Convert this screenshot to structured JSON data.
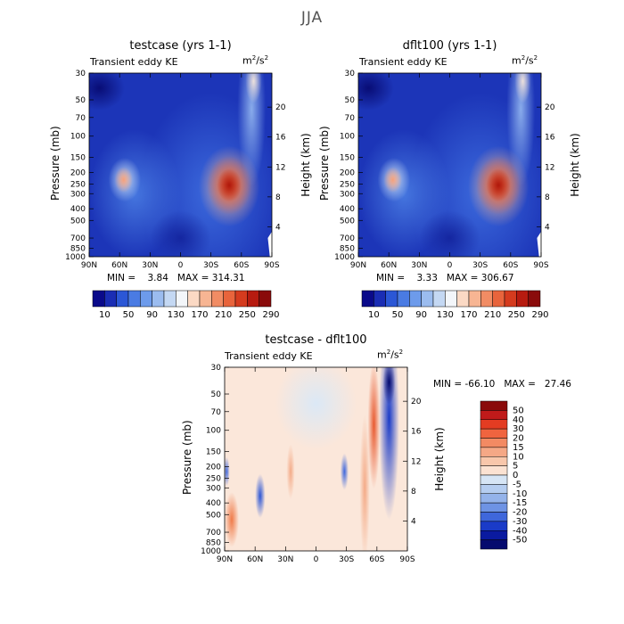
{
  "figure": {
    "title": "JJA"
  },
  "panels": [
    {
      "id": "testcase",
      "title": "testcase (yrs 1-1)",
      "left_label": "Transient eddy KE",
      "right_label": "m²/s²",
      "stats": "MIN =    3.84   MAX = 314.31"
    },
    {
      "id": "dflt100",
      "title": "dflt100 (yrs 1-1)",
      "left_label": "Transient eddy KE",
      "right_label": "m²/s²",
      "stats": "MIN =    3.33   MAX = 306.67"
    },
    {
      "id": "diff",
      "title": "testcase - dflt100",
      "left_label": "Transient eddy KE",
      "right_label": "m²/s²",
      "stats": "MIN = -66.10   MAX =   27.46"
    }
  ],
  "axes": {
    "ylabel": "Pressure (mb)",
    "y2label": "Height (km)",
    "xticks": [
      "90N",
      "60N",
      "30N",
      "0",
      "30S",
      "60S",
      "90S"
    ],
    "yticks": [
      "30",
      "50",
      "70",
      "100",
      "150",
      "200",
      "250",
      "300",
      "400",
      "500",
      "700",
      "850",
      "1000"
    ],
    "y2ticks": [
      "20",
      "16",
      "12",
      "8",
      "4"
    ]
  },
  "colorbars": {
    "abs_labels": [
      "10",
      "50",
      "90",
      "130",
      "170",
      "210",
      "250",
      "290"
    ],
    "abs_colors": [
      "#0a0a8a",
      "#1a2db4",
      "#2b57d6",
      "#4a7be3",
      "#6d9beb",
      "#9bbcef",
      "#c4d8f3",
      "#f3f6fa",
      "#fbd9c4",
      "#f7b593",
      "#f18c64",
      "#e8643c",
      "#d53b1e",
      "#b71b10",
      "#8a0b0b"
    ],
    "diff_labels": [
      "50",
      "40",
      "30",
      "20",
      "15",
      "10",
      "5",
      "0",
      "-5",
      "-10",
      "-15",
      "-20",
      "-30",
      "-40",
      "-50"
    ],
    "diff_colors": [
      "#8a0a0a",
      "#c01a1a",
      "#e33c22",
      "#f0643f",
      "#f38a63",
      "#f5a886",
      "#f8c7ab",
      "#fbe2d2",
      "#d6e5f5",
      "#b5cdf0",
      "#94b3ea",
      "#6e93e4",
      "#3f67db",
      "#1a3bc8",
      "#0a1aa0",
      "#050a6e"
    ]
  },
  "chart_data": [
    {
      "type": "heatmap",
      "title": "testcase (yrs 1-1)",
      "variable": "Transient eddy KE",
      "units": "m²/s²",
      "xlabel": "",
      "ylabel": "Pressure (mb)",
      "y2label": "Height (km)",
      "x_ticks": [
        "90N",
        "60N",
        "30N",
        "0",
        "30S",
        "60S",
        "90S"
      ],
      "y_ticks": [
        30,
        50,
        70,
        100,
        150,
        200,
        250,
        300,
        400,
        500,
        700,
        850,
        1000
      ],
      "y2_ticks": [
        20,
        16,
        12,
        8,
        4
      ],
      "y_scale": "log",
      "contour_levels": [
        10,
        50,
        90,
        130,
        170,
        210,
        250,
        290
      ],
      "min": 3.84,
      "max": 314.31,
      "features": [
        {
          "lat": -50,
          "pressure": 250,
          "value": 300
        },
        {
          "lat": 55,
          "pressure": 250,
          "value": 170
        },
        {
          "lat": -75,
          "pressure": 40,
          "value": 150
        }
      ]
    },
    {
      "type": "heatmap",
      "title": "dflt100 (yrs 1-1)",
      "variable": "Transient eddy KE",
      "units": "m²/s²",
      "xlabel": "",
      "ylabel": "Pressure (mb)",
      "y2label": "Height (km)",
      "x_ticks": [
        "90N",
        "60N",
        "30N",
        "0",
        "30S",
        "60S",
        "90S"
      ],
      "y_ticks": [
        30,
        50,
        70,
        100,
        150,
        200,
        250,
        300,
        400,
        500,
        700,
        850,
        1000
      ],
      "y2_ticks": [
        20,
        16,
        12,
        8,
        4
      ],
      "y_scale": "log",
      "contour_levels": [
        10,
        50,
        90,
        130,
        170,
        210,
        250,
        290
      ],
      "min": 3.33,
      "max": 306.67,
      "features": [
        {
          "lat": -50,
          "pressure": 250,
          "value": 295
        },
        {
          "lat": 55,
          "pressure": 250,
          "value": 165
        },
        {
          "lat": -75,
          "pressure": 40,
          "value": 140
        }
      ]
    },
    {
      "type": "heatmap",
      "title": "testcase - dflt100",
      "variable": "Transient eddy KE",
      "units": "m²/s²",
      "xlabel": "",
      "ylabel": "Pressure (mb)",
      "y2label": "Height (km)",
      "x_ticks": [
        "90N",
        "60N",
        "30N",
        "0",
        "30S",
        "60S",
        "90S"
      ],
      "y_ticks": [
        30,
        50,
        70,
        100,
        150,
        200,
        250,
        300,
        400,
        500,
        700,
        850,
        1000
      ],
      "y2_ticks": [
        20,
        16,
        12,
        8,
        4
      ],
      "y_scale": "log",
      "contour_levels": [
        -50,
        -40,
        -30,
        -20,
        -15,
        -10,
        -5,
        0,
        5,
        10,
        15,
        20,
        30,
        40,
        50
      ],
      "min": -66.1,
      "max": 27.46,
      "features": [
        {
          "lat": -55,
          "pressure": 80,
          "value": 25
        },
        {
          "lat": -72,
          "pressure": 40,
          "value": -60
        },
        {
          "lat": 85,
          "pressure": 550,
          "value": 20
        },
        {
          "lat": 55,
          "pressure": 350,
          "value": -25
        }
      ]
    }
  ]
}
